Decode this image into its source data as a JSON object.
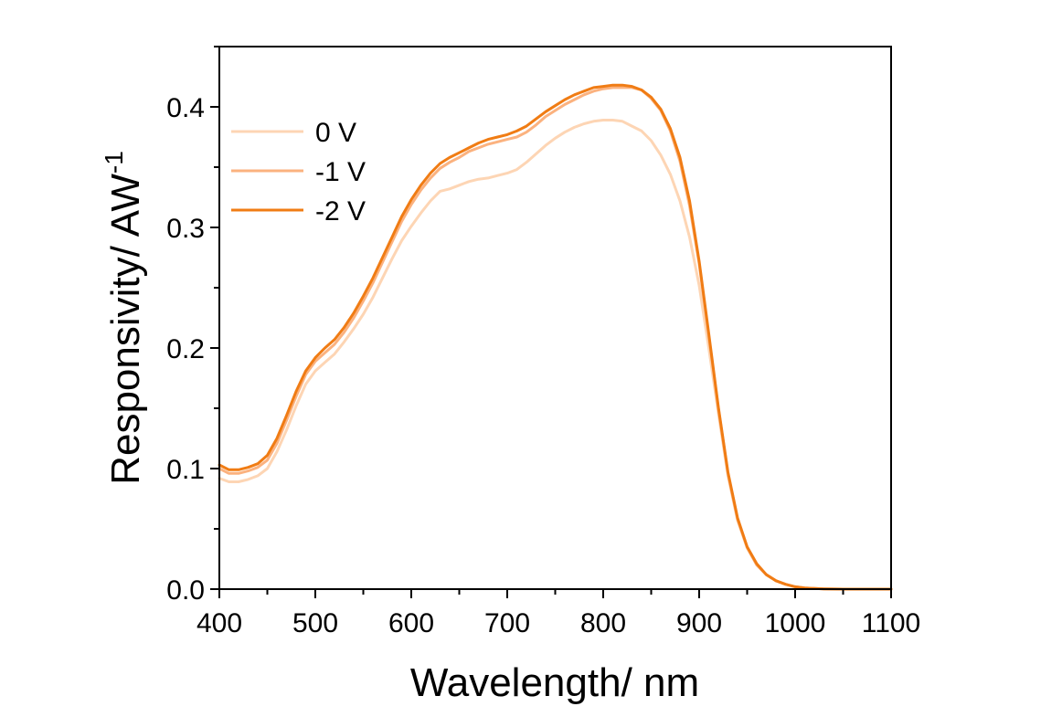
{
  "chart_data": {
    "type": "line",
    "title": "",
    "xlabel": "Wavelength/ nm",
    "ylabel": "Responsivity/ AW",
    "ylabel_superscript": "-1",
    "xlim": [
      400,
      1100
    ],
    "ylim": [
      0,
      0.45
    ],
    "xticks": [
      400,
      500,
      600,
      700,
      800,
      900,
      1000,
      1100
    ],
    "xtick_labels": [
      "400",
      "500",
      "600",
      "700",
      "800",
      "900",
      "1000",
      "1100"
    ],
    "yticks": [
      0.0,
      0.1,
      0.2,
      0.3,
      0.4
    ],
    "ytick_labels": [
      "0.0",
      "0.1",
      "0.2",
      "0.3",
      "0.4"
    ],
    "grid": false,
    "legend_position": "top-left",
    "series": [
      {
        "name": "0 V",
        "color": "#fdd5b4",
        "x": [
          400,
          410,
          420,
          430,
          440,
          450,
          460,
          470,
          480,
          490,
          500,
          510,
          520,
          530,
          540,
          550,
          560,
          570,
          580,
          590,
          600,
          610,
          620,
          630,
          640,
          650,
          660,
          670,
          680,
          690,
          700,
          710,
          720,
          730,
          740,
          750,
          760,
          770,
          780,
          790,
          800,
          810,
          820,
          830,
          840,
          850,
          860,
          870,
          880,
          890,
          900,
          910,
          920,
          930,
          940,
          950,
          960,
          970,
          980,
          990,
          1000,
          1010,
          1020,
          1030,
          1040,
          1050,
          1060,
          1070,
          1080,
          1090,
          1100
        ],
        "values": [
          0.092,
          0.089,
          0.089,
          0.091,
          0.094,
          0.1,
          0.114,
          0.132,
          0.152,
          0.17,
          0.181,
          0.188,
          0.195,
          0.205,
          0.216,
          0.228,
          0.242,
          0.258,
          0.274,
          0.289,
          0.301,
          0.312,
          0.322,
          0.33,
          0.332,
          0.335,
          0.338,
          0.34,
          0.341,
          0.343,
          0.345,
          0.348,
          0.354,
          0.361,
          0.368,
          0.374,
          0.379,
          0.383,
          0.386,
          0.388,
          0.389,
          0.389,
          0.388,
          0.384,
          0.38,
          0.372,
          0.36,
          0.344,
          0.322,
          0.292,
          0.252,
          0.2,
          0.146,
          0.094,
          0.057,
          0.034,
          0.02,
          0.012,
          0.007,
          0.004,
          0.002,
          0.001,
          0.0005,
          0.0002,
          0.0001,
          0.0,
          0.0,
          0.0,
          0.0,
          0.0,
          0.0
        ]
      },
      {
        "name": "-1 V",
        "color": "#fbb27f",
        "x": [
          400,
          410,
          420,
          430,
          440,
          450,
          460,
          470,
          480,
          490,
          500,
          510,
          520,
          530,
          540,
          550,
          560,
          570,
          580,
          590,
          600,
          610,
          620,
          630,
          640,
          650,
          660,
          670,
          680,
          690,
          700,
          710,
          720,
          730,
          740,
          750,
          760,
          770,
          780,
          790,
          800,
          810,
          820,
          830,
          840,
          850,
          860,
          870,
          880,
          890,
          900,
          910,
          920,
          930,
          940,
          950,
          960,
          970,
          980,
          990,
          1000,
          1010,
          1020,
          1030,
          1040,
          1050,
          1060,
          1070,
          1080,
          1090,
          1100
        ],
        "values": [
          0.1,
          0.096,
          0.096,
          0.098,
          0.101,
          0.107,
          0.121,
          0.14,
          0.16,
          0.178,
          0.189,
          0.196,
          0.203,
          0.213,
          0.225,
          0.239,
          0.254,
          0.271,
          0.288,
          0.305,
          0.319,
          0.331,
          0.341,
          0.349,
          0.354,
          0.358,
          0.363,
          0.366,
          0.369,
          0.371,
          0.373,
          0.375,
          0.379,
          0.385,
          0.392,
          0.397,
          0.402,
          0.406,
          0.41,
          0.413,
          0.415,
          0.416,
          0.416,
          0.416,
          0.414,
          0.407,
          0.397,
          0.38,
          0.355,
          0.318,
          0.27,
          0.21,
          0.15,
          0.096,
          0.058,
          0.035,
          0.02,
          0.012,
          0.007,
          0.004,
          0.002,
          0.001,
          0.0005,
          0.0002,
          0.0001,
          0.0,
          0.0,
          0.0,
          0.0,
          0.0,
          0.0
        ]
      },
      {
        "name": "-2 V",
        "color": "#f07c14",
        "x": [
          400,
          410,
          420,
          430,
          440,
          450,
          460,
          470,
          480,
          490,
          500,
          510,
          520,
          530,
          540,
          550,
          560,
          570,
          580,
          590,
          600,
          610,
          620,
          630,
          640,
          650,
          660,
          670,
          680,
          690,
          700,
          710,
          720,
          730,
          740,
          750,
          760,
          770,
          780,
          790,
          800,
          810,
          820,
          830,
          840,
          850,
          860,
          870,
          880,
          890,
          900,
          910,
          920,
          930,
          940,
          950,
          960,
          970,
          980,
          990,
          1000,
          1010,
          1020,
          1030,
          1040,
          1050,
          1060,
          1070,
          1080,
          1090,
          1100
        ],
        "values": [
          0.103,
          0.099,
          0.099,
          0.101,
          0.104,
          0.111,
          0.125,
          0.144,
          0.164,
          0.181,
          0.192,
          0.2,
          0.207,
          0.217,
          0.229,
          0.243,
          0.258,
          0.275,
          0.292,
          0.309,
          0.323,
          0.335,
          0.345,
          0.353,
          0.358,
          0.362,
          0.366,
          0.37,
          0.373,
          0.375,
          0.377,
          0.38,
          0.384,
          0.39,
          0.396,
          0.401,
          0.406,
          0.41,
          0.413,
          0.416,
          0.417,
          0.418,
          0.418,
          0.417,
          0.414,
          0.408,
          0.398,
          0.382,
          0.358,
          0.322,
          0.272,
          0.212,
          0.151,
          0.097,
          0.059,
          0.035,
          0.021,
          0.012,
          0.007,
          0.004,
          0.002,
          0.001,
          0.0005,
          0.0002,
          0.0001,
          0.0,
          0.0,
          0.0,
          0.0,
          0.0,
          0.0
        ]
      }
    ]
  }
}
